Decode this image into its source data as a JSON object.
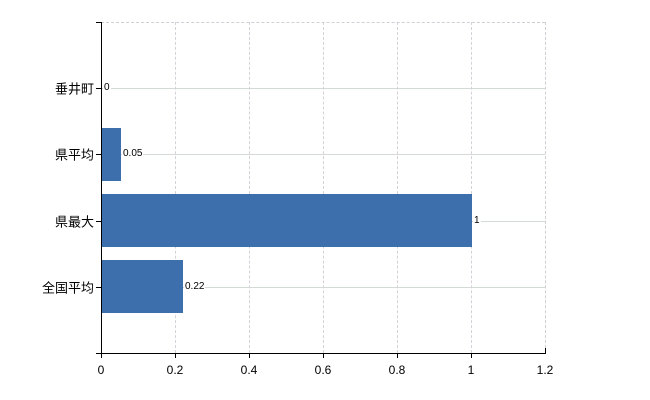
{
  "chart_data": {
    "type": "bar",
    "orientation": "horizontal",
    "title": "",
    "categories": [
      "垂井町",
      "県平均",
      "県最大",
      "全国平均"
    ],
    "values": [
      0,
      0.05,
      1,
      0.22
    ],
    "value_labels": [
      "0",
      "0.05",
      "1",
      "0.22"
    ],
    "xlabel": "",
    "ylabel": "",
    "xlim": [
      0,
      1.2
    ],
    "x_ticks": [
      0,
      0.2,
      0.4,
      0.6,
      0.8,
      1,
      1.2
    ],
    "x_tick_labels": [
      "0",
      "0.2",
      "0.4",
      "0.6",
      "0.8",
      "1",
      "1.2"
    ],
    "legend": null,
    "grid": {
      "horizontal": "solid lines at each category center",
      "vertical": "dashed lines at each x tick",
      "plot_border": "dashed top and right"
    },
    "colors": {
      "bar": "#3e6fad",
      "grid_horizontal": "#d4dbd4",
      "grid_vertical": "#d6d1d8",
      "axis": "#000000",
      "text": "#000000",
      "background": "#ffffff"
    }
  }
}
